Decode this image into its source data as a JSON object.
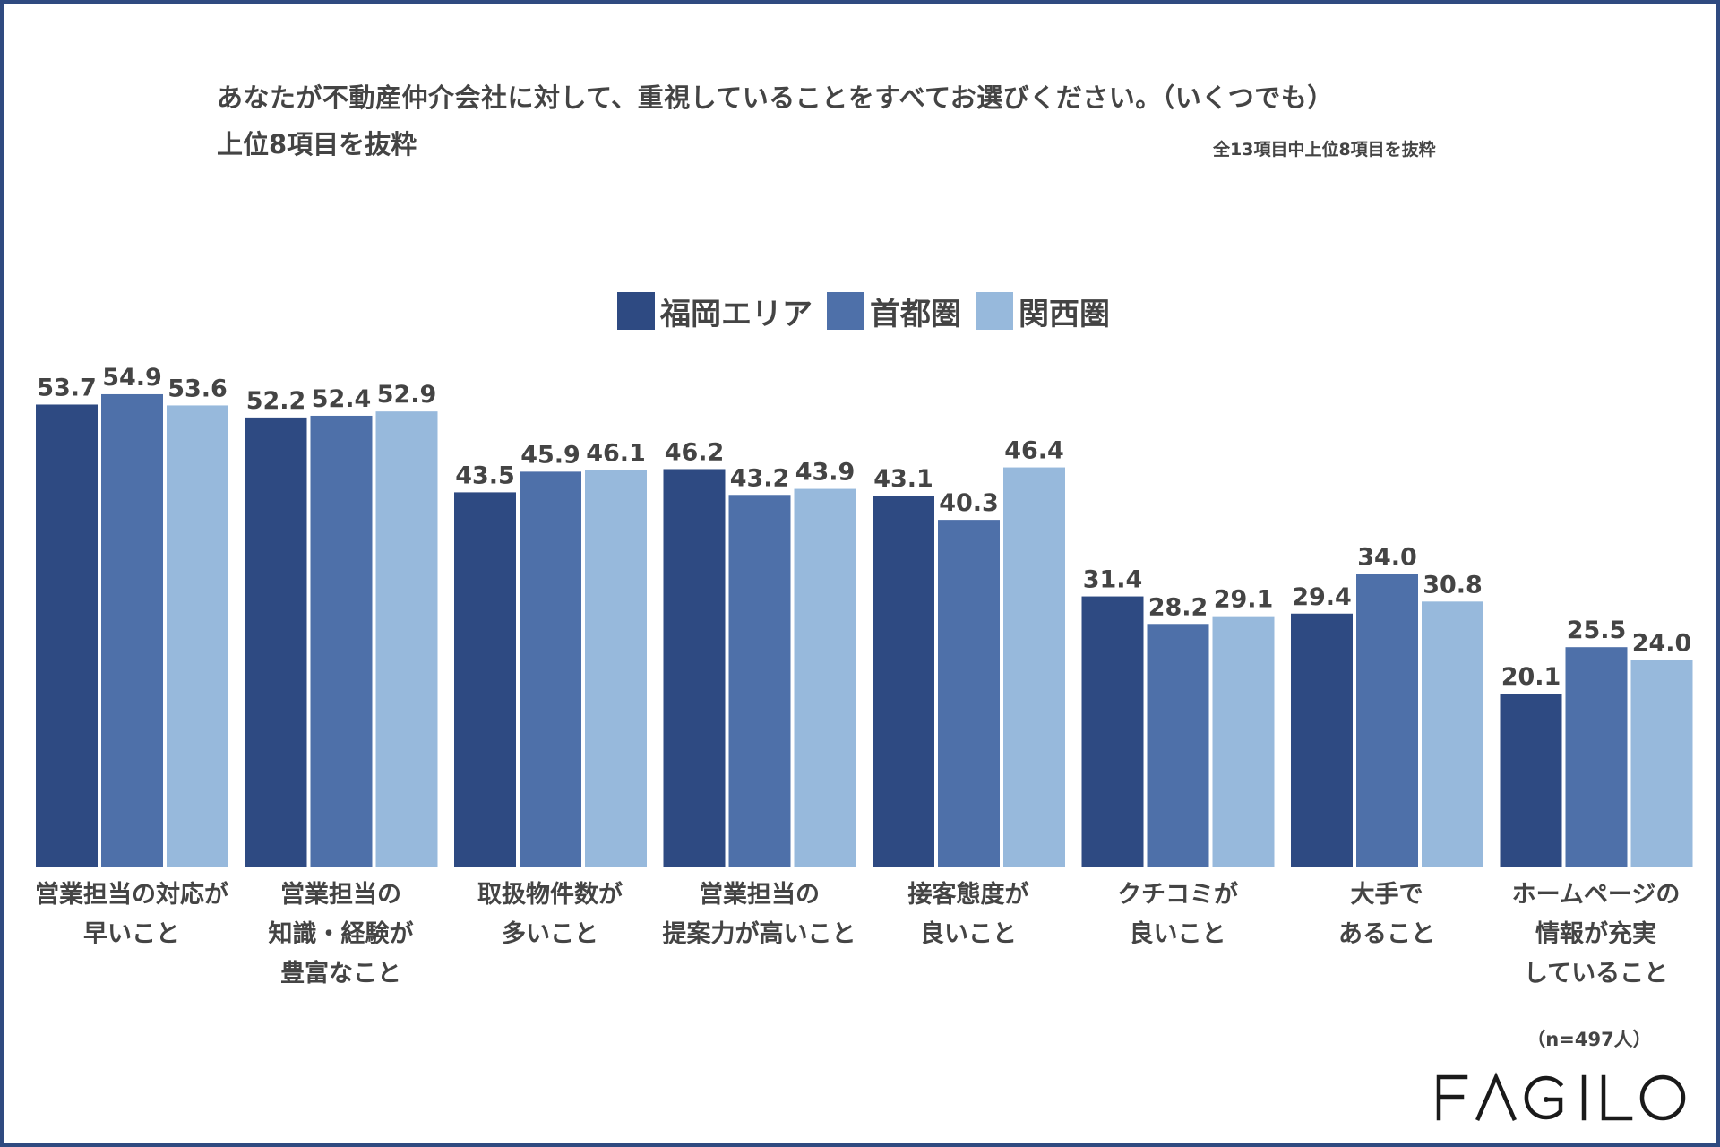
{
  "title": "あなたが不動産仲介会社に対して、重視していることをすべてお選びください。（いくつでも）",
  "subtitle": "上位8項目を抜粋",
  "note": "全13項目中上位8項目を抜粋",
  "sample_size": "（n=497人）",
  "logo_text": "FAGILO",
  "chart_data": {
    "type": "bar",
    "title": "あなたが不動産仲介会社に対して、重視していることをすべてお選びください。（いくつでも）",
    "subtitle": "上位8項目を抜粋",
    "xlabel": "",
    "ylabel": "",
    "ylim": [
      0,
      60
    ],
    "grid": false,
    "legend_position": "top-center",
    "categories": [
      "営業担当の対応が\n早いこと",
      "営業担当の\n知識・経験が\n豊富なこと",
      "取扱物件数が\n多いこと",
      "営業担当の\n提案力が高いこと",
      "接客態度が\n良いこと",
      "クチコミが\n良いこと",
      "大手で\nあること",
      "ホームページの\n情報が充実\nしていること"
    ],
    "series": [
      {
        "name": "福岡エリア",
        "color": "#2e4a82",
        "values": [
          53.7,
          52.2,
          43.5,
          46.2,
          43.1,
          31.4,
          29.4,
          20.1
        ]
      },
      {
        "name": "首都圏",
        "color": "#4e70a9",
        "values": [
          54.9,
          52.4,
          45.9,
          43.2,
          40.3,
          28.2,
          34.0,
          25.5
        ]
      },
      {
        "name": "関西圏",
        "color": "#97b9dc",
        "values": [
          53.6,
          52.9,
          46.1,
          43.9,
          46.4,
          29.1,
          30.8,
          24.0
        ]
      }
    ]
  }
}
